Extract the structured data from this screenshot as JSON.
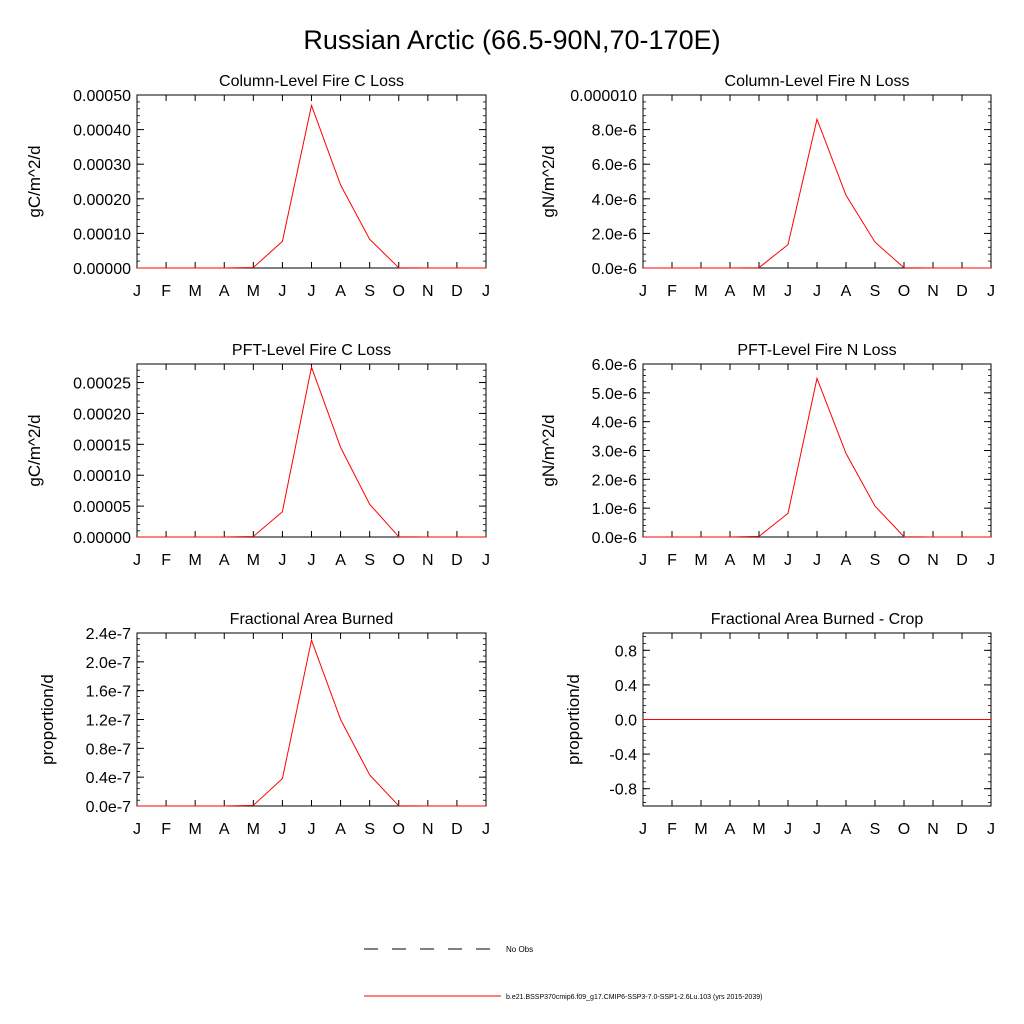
{
  "title": "Russian Arctic (66.5-90N,70-170E)",
  "colors": {
    "series": "#ff0000",
    "axis": "#000000",
    "no_obs": "#000000"
  },
  "legend": {
    "entries": [
      {
        "label": "No Obs",
        "style": "dashed",
        "color": "#000000"
      },
      {
        "label": "b.e21.BSSP370cmip6.f09_g17.CMIP6-SSP3-7.0-SSP1-2.6Lu.103 (yrs 2015-2039)",
        "style": "solid",
        "color": "#ff0000"
      }
    ],
    "placement": "bottom-center"
  },
  "chart_data": [
    {
      "type": "line",
      "title": "Column-Level Fire C Loss",
      "ylabel": "gC/m^2/d",
      "xlabel": "",
      "categories": [
        "J",
        "F",
        "M",
        "A",
        "M",
        "J",
        "J",
        "A",
        "S",
        "O",
        "N",
        "D",
        "J"
      ],
      "series": [
        {
          "values": [
            0,
            0,
            0,
            0,
            1.5e-06,
            7.7e-05,
            0.00047,
            0.00024,
            8.3e-05,
            5e-07,
            0,
            0,
            0
          ]
        }
      ],
      "ylim": [
        0,
        0.0005
      ],
      "yticks": [
        0,
        0.0001,
        0.0002,
        0.0003,
        0.0004,
        0.0005
      ],
      "yticklabels": [
        "0.00000",
        "0.00010",
        "0.00020",
        "0.00030",
        "0.00040",
        "0.00050"
      ],
      "grid": false
    },
    {
      "type": "line",
      "title": "Column-Level Fire N Loss",
      "ylabel": "gN/m^2/d",
      "xlabel": "",
      "categories": [
        "J",
        "F",
        "M",
        "A",
        "M",
        "J",
        "J",
        "A",
        "S",
        "O",
        "N",
        "D",
        "J"
      ],
      "series": [
        {
          "values": [
            0,
            0,
            0,
            0,
            2e-08,
            1.35e-06,
            8.6e-06,
            4.2e-06,
            1.5e-06,
            1e-08,
            0,
            0,
            0
          ]
        }
      ],
      "ylim": [
        0,
        1e-05
      ],
      "yticks": [
        0,
        2e-06,
        4e-06,
        6e-06,
        8e-06,
        1e-05
      ],
      "yticklabels": [
        "0.0e-6",
        "2.0e-6",
        "4.0e-6",
        "6.0e-6",
        "8.0e-6",
        "0.000010"
      ],
      "grid": false
    },
    {
      "type": "line",
      "title": "PFT-Level Fire C Loss",
      "ylabel": "gC/m^2/d",
      "xlabel": "",
      "categories": [
        "J",
        "F",
        "M",
        "A",
        "M",
        "J",
        "J",
        "A",
        "S",
        "O",
        "N",
        "D",
        "J"
      ],
      "series": [
        {
          "values": [
            0,
            0,
            0,
            0,
            8e-07,
            4.1e-05,
            0.000275,
            0.000145,
            5.3e-05,
            3e-07,
            0,
            0,
            0
          ]
        }
      ],
      "ylim": [
        0,
        0.00028
      ],
      "yticks": [
        0,
        5e-05,
        0.0001,
        0.00015,
        0.0002,
        0.00025
      ],
      "yticklabels": [
        "0.00000",
        "0.00005",
        "0.00010",
        "0.00015",
        "0.00020",
        "0.00025"
      ],
      "grid": false
    },
    {
      "type": "line",
      "title": "PFT-Level Fire N Loss",
      "ylabel": "gN/m^2/d",
      "xlabel": "",
      "categories": [
        "J",
        "F",
        "M",
        "A",
        "M",
        "J",
        "J",
        "A",
        "S",
        "O",
        "N",
        "D",
        "J"
      ],
      "series": [
        {
          "values": [
            0,
            0,
            0,
            0,
            2e-08,
            8.2e-07,
            5.5e-06,
            2.9e-06,
            1.07e-06,
            1e-08,
            0,
            0,
            0
          ]
        }
      ],
      "ylim": [
        0,
        6e-06
      ],
      "yticks": [
        0,
        1e-06,
        2e-06,
        3e-06,
        4e-06,
        5e-06,
        6e-06
      ],
      "yticklabels": [
        "0.0e-6",
        "1.0e-6",
        "2.0e-6",
        "3.0e-6",
        "4.0e-6",
        "5.0e-6",
        "6.0e-6"
      ],
      "grid": false
    },
    {
      "type": "line",
      "title": "Fractional Area Burned",
      "ylabel": "proportion/d",
      "xlabel": "",
      "categories": [
        "J",
        "F",
        "M",
        "A",
        "M",
        "J",
        "J",
        "A",
        "S",
        "O",
        "N",
        "D",
        "J"
      ],
      "series": [
        {
          "values": [
            0,
            0,
            0,
            0,
            8e-10,
            3.8e-08,
            2.3e-07,
            1.2e-07,
            4.3e-08,
            3e-10,
            0,
            0,
            0
          ]
        }
      ],
      "ylim": [
        0,
        2.4e-07
      ],
      "yticks": [
        0,
        4e-08,
        8e-08,
        1.2e-07,
        1.6e-07,
        2e-07,
        2.4e-07
      ],
      "yticklabels": [
        "0.0e-7",
        "0.4e-7",
        "0.8e-7",
        "1.2e-7",
        "1.6e-7",
        "2.0e-7",
        "2.4e-7"
      ],
      "grid": false
    },
    {
      "type": "line",
      "title": "Fractional Area Burned - Crop",
      "ylabel": "proportion/d",
      "xlabel": "",
      "categories": [
        "J",
        "F",
        "M",
        "A",
        "M",
        "J",
        "J",
        "A",
        "S",
        "O",
        "N",
        "D",
        "J"
      ],
      "series": [
        {
          "values": [
            0,
            0,
            0,
            0,
            0,
            0,
            0,
            0,
            0,
            0,
            0,
            0,
            0
          ]
        }
      ],
      "ylim": [
        -1,
        1
      ],
      "yticks": [
        -0.8,
        -0.4,
        0,
        0.4,
        0.8
      ],
      "yticklabels": [
        "-0.8",
        "-0.4",
        "0.0",
        "0.4",
        "0.8"
      ],
      "grid": false
    }
  ]
}
